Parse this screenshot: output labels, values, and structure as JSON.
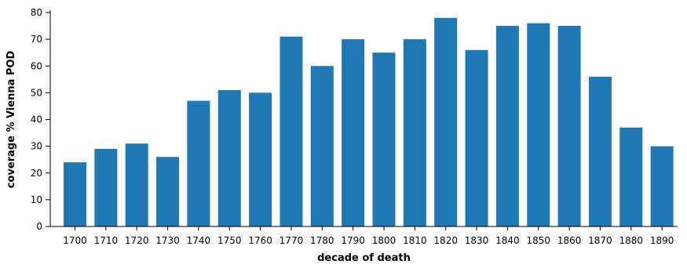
{
  "chart_data": {
    "type": "bar",
    "title": "",
    "xlabel": "decade of death",
    "ylabel": "coverage % Vienna POD",
    "categories": [
      "1700",
      "1710",
      "1720",
      "1730",
      "1740",
      "1750",
      "1760",
      "1770",
      "1780",
      "1790",
      "1800",
      "1810",
      "1820",
      "1830",
      "1840",
      "1850",
      "1860",
      "1870",
      "1880",
      "1890"
    ],
    "values": [
      24,
      29,
      31,
      26,
      47,
      51,
      50,
      71,
      60,
      70,
      65,
      70,
      78,
      66,
      75,
      76,
      75,
      56,
      37,
      30
    ],
    "ylim": [
      0,
      80
    ],
    "yticks": [
      0,
      10,
      20,
      30,
      40,
      50,
      60,
      70,
      80
    ],
    "grid": false,
    "legend": "none",
    "bar_color": "#1f77b4",
    "axis_color": "#000000"
  }
}
